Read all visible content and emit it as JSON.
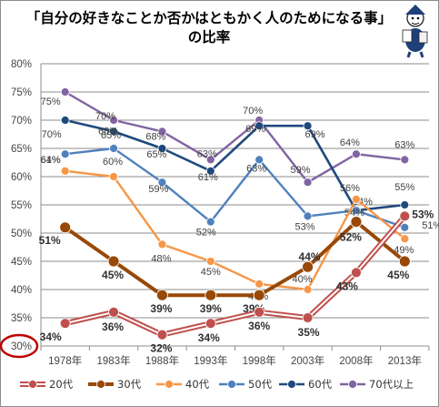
{
  "title_line1": "「自分の好きなことか否かはともかく人のためになる事」",
  "title_line2": "の比率",
  "colors": {
    "20代": "#c0504d",
    "30代": "#984807",
    "40代": "#f79646",
    "50代": "#4f81bd",
    "60代": "#1f497d",
    "70代以上": "#8064a2",
    "highlight_circle": "#c00000"
  },
  "chart_data": {
    "type": "line",
    "categories": [
      "1978年",
      "1983年",
      "1988年",
      "1993年",
      "1998年",
      "2003年",
      "2008年",
      "2013年"
    ],
    "y_ticks": [
      "30%",
      "35%",
      "40%",
      "45%",
      "50%",
      "55%",
      "60%",
      "65%",
      "70%",
      "75%",
      "80%"
    ],
    "ylim": [
      30,
      80
    ],
    "grid": true,
    "legend_position": "bottom",
    "highlighted_tick": "30%",
    "series": [
      {
        "name": "20代",
        "values": [
          34,
          36,
          32,
          34,
          36,
          35,
          43,
          53
        ],
        "labels": [
          "34%",
          "36%",
          "32%",
          "34%",
          "36%",
          "35%",
          "43%",
          "53%"
        ]
      },
      {
        "name": "30代",
        "values": [
          51,
          45,
          39,
          39,
          39,
          44,
          52,
          45
        ],
        "labels": [
          "51%",
          "45%",
          "39%",
          "39%",
          "39%",
          "44%",
          "52%",
          "45%"
        ]
      },
      {
        "name": "40代",
        "values": [
          61,
          60,
          48,
          45,
          41,
          40,
          56,
          49
        ],
        "labels": [
          "61%",
          "60%",
          "48%",
          "45%",
          "41%",
          "40%",
          "56%",
          "49%"
        ]
      },
      {
        "name": "50代",
        "values": [
          64,
          65,
          59,
          52,
          63,
          53,
          54,
          51
        ],
        "labels": [
          "64%",
          "65%",
          "59%",
          "52%",
          "63%",
          "53%",
          "54%",
          "51%"
        ]
      },
      {
        "name": "60代",
        "values": [
          70,
          68,
          65,
          61,
          69,
          69,
          54,
          55
        ],
        "labels": [
          "70%",
          "68%",
          "65%",
          "61%",
          "69%",
          "69%",
          "54%",
          "55%"
        ]
      },
      {
        "name": "70代以上",
        "values": [
          75,
          70,
          68,
          63,
          70,
          59,
          64,
          63
        ],
        "labels": [
          "75%",
          "70%",
          "68%",
          "63%",
          "70%",
          "59%",
          "64%",
          "63%"
        ]
      }
    ]
  }
}
